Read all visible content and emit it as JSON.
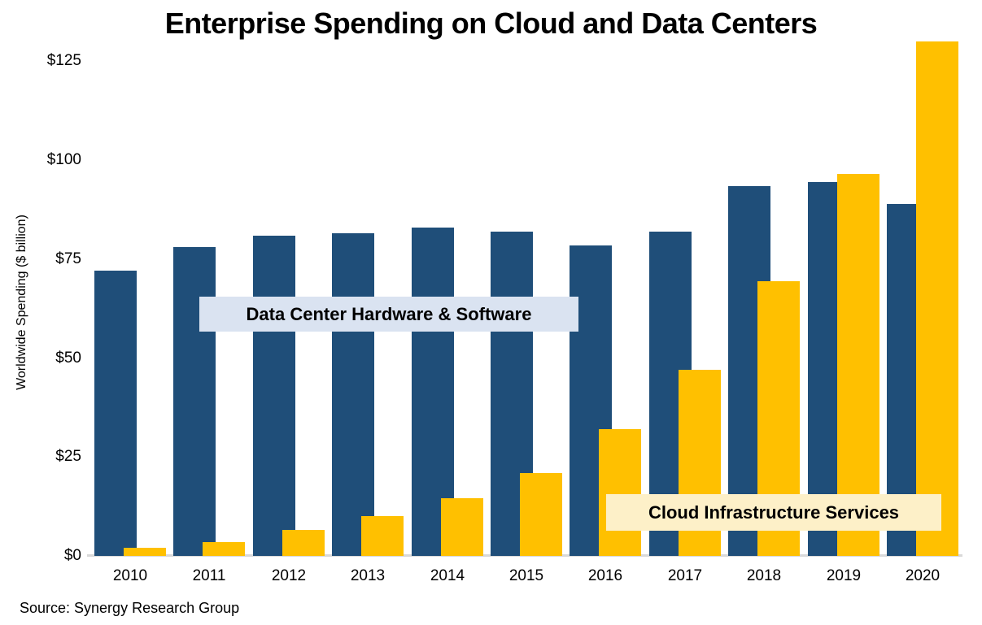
{
  "chart": {
    "title": "Enterprise Spending on Cloud and Data Centers",
    "ylabel": "Worldwide Spending ($ billion)",
    "source": "Source: Synergy Research Group",
    "series_labels": [
      {
        "text": "Data Center Hardware & Software",
        "bg": "#DAE3F1"
      },
      {
        "text": "Cloud Infrastructure Services",
        "bg": "#FDF0C8"
      }
    ]
  },
  "chart_data": {
    "type": "bar",
    "title": "Enterprise Spending on Cloud and Data Centers",
    "xlabel": "",
    "ylabel": "Worldwide Spending ($ billion)",
    "source": "Source: Synergy Research Group",
    "categories": [
      "2010",
      "2011",
      "2012",
      "2013",
      "2014",
      "2015",
      "2016",
      "2017",
      "2018",
      "2019",
      "2020"
    ],
    "series": [
      {
        "name": "Data Center Hardware & Software",
        "color": "#1F4E79",
        "values": [
          72,
          78,
          81,
          81.5,
          83,
          82,
          78.5,
          82,
          93.5,
          94.5,
          89
        ]
      },
      {
        "name": "Cloud Infrastructure Services",
        "color": "#FFC000",
        "values": [
          2,
          3.5,
          6.5,
          10,
          14.5,
          21,
          32,
          47,
          69.5,
          96.5,
          130
        ]
      }
    ],
    "ylim": [
      0,
      135
    ],
    "yticks": {
      "values": [
        0,
        25,
        50,
        75,
        100,
        125
      ],
      "labels": [
        "$0",
        "$25",
        "$50",
        "$75",
        "$100",
        "$125"
      ]
    },
    "grid": false,
    "legend_position": "in-plot text boxes",
    "axis_line_color": "#D9D9D9",
    "units": "USD billions"
  }
}
